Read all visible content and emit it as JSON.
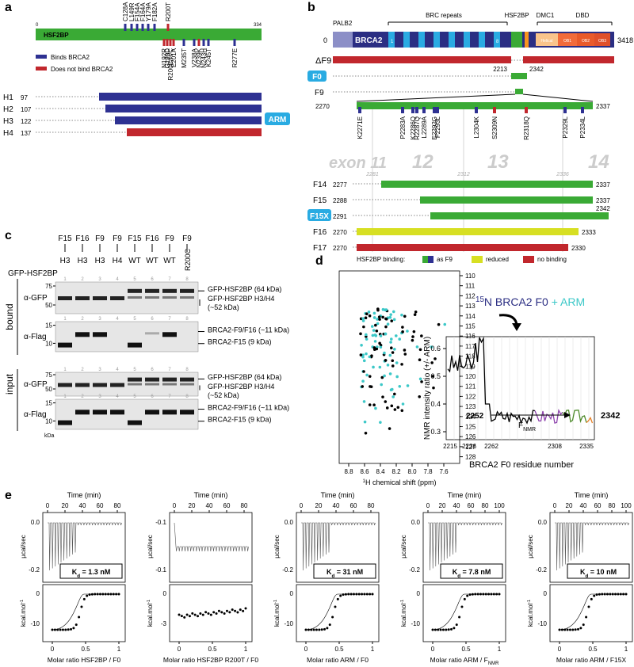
{
  "a": {
    "label": "a",
    "protein": "HSF2BP",
    "start": "0",
    "end": "334",
    "top_mutations": [
      "C128A",
      "L149R",
      "F154A",
      "F164A",
      "Y179A",
      "F182A",
      "R200T"
    ],
    "bottom_mutations": [
      "N192R",
      "G199D",
      "R200E/H/C",
      "E201A",
      "M235T",
      "V238A",
      "N239K",
      "N243H",
      "K245T",
      "R277E"
    ],
    "legend": [
      "Binds BRCA2",
      "Does not bind BRCA2"
    ],
    "constructs": [
      {
        "name": "H1",
        "start": "97"
      },
      {
        "name": "H2",
        "start": "107"
      },
      {
        "name": "H3",
        "start": "122"
      },
      {
        "name": "H4",
        "start": "137"
      }
    ],
    "arm": "ARM"
  },
  "b": {
    "label": "b",
    "domains": {
      "palb2": "PALB2",
      "brc": "BRC repeats",
      "hsf2bp": "HSF2BP",
      "dmc1": "DMC1",
      "dbd": "DBD"
    },
    "start": "0",
    "end": "3418",
    "protein": "BRCA2",
    "brc_first": "1",
    "brc_last": "8",
    "dbd_parts": [
      "Helical",
      "OB1",
      "OB2",
      "OB3"
    ],
    "delta_f9": "ΔF9",
    "f0": {
      "name": "F0",
      "start": "2213",
      "end": "2342"
    },
    "f9": {
      "name": "F9",
      "start": "2270",
      "end": "2337"
    },
    "mutations": [
      "K2271E",
      "P2283A",
      "K2286Q",
      "R2287Q",
      "L2289A",
      "E2292G",
      "F2293L",
      "L2304K",
      "S2309N",
      "R2318Q",
      "P2329L",
      "P2334L"
    ],
    "exons": [
      "exon 11",
      "12",
      "13",
      "14"
    ],
    "exon_bounds": [
      "2281",
      "2312",
      "2336"
    ],
    "constructs": [
      {
        "name": "F14",
        "start": "2277",
        "end": "2337"
      },
      {
        "name": "F15",
        "start": "2288",
        "end": "2337"
      },
      {
        "name": "F15X",
        "start": "2291",
        "end": "2342"
      },
      {
        "name": "F16",
        "start": "2270",
        "end": "2333"
      },
      {
        "name": "F17",
        "start": "2270",
        "end": "2330"
      }
    ],
    "binding_legend": {
      "title": "HSF2BP binding:",
      "items": [
        "as F9",
        "reduced",
        "no binding"
      ]
    }
  },
  "c": {
    "label": "c",
    "row_label": "GFP-HSF2BP",
    "brca2_lanes": [
      "F15",
      "F16",
      "F9",
      "F9",
      "F15",
      "F16",
      "F9",
      "F9"
    ],
    "hsf2bp_lanes": [
      "H3",
      "H3",
      "H3",
      "H4",
      "WT",
      "WT",
      "WT",
      "R200C"
    ],
    "lane_numbers": [
      "1",
      "2",
      "3",
      "4",
      "5",
      "6",
      "7",
      "8"
    ],
    "antibodies": [
      "α-GFP",
      "α-Flag"
    ],
    "sections": [
      "bound",
      "input"
    ],
    "gfp_ticks": [
      "75",
      "50"
    ],
    "flag_ticks": [
      "15",
      "10"
    ],
    "unit": "kDa",
    "band_labels": [
      "GFP-HSF2BP (64 kDa)",
      "GFP-HSF2BP H3/H4",
      "(~52 kDa)",
      "BRCA2-F9/F16 (~11 kDa)",
      "BRCA2-F15 (9 kDa)"
    ]
  },
  "d": {
    "label": "d",
    "nmr": {
      "yticks": [
        "110",
        "111",
        "112",
        "113",
        "114",
        "115",
        "116",
        "117",
        "118",
        "119",
        "120",
        "121",
        "122",
        "123",
        "124",
        "125",
        "126",
        "127",
        "128"
      ],
      "xticks": [
        "8.8",
        "8.6",
        "8.4",
        "8.2",
        "8.0",
        "7.8",
        "7.6"
      ],
      "xlabel": [
        "1",
        "H chemical shift (ppm)"
      ]
    },
    "ratio": {
      "title": [
        "15",
        "N BRCA2 F0",
        " + ARM"
      ],
      "ylabel": "NMR intensity ratio (+/- ARM)",
      "yticks": [
        "0.3",
        "0.4",
        "0.5",
        "0.6"
      ],
      "xticks": [
        "2215",
        "2236",
        "2262",
        "2308",
        "2335"
      ],
      "start": "2252",
      "region": [
        "F",
        "NMR"
      ],
      "end": "2342",
      "xlabel": "BRCA2 F0 residue number"
    }
  },
  "e": {
    "label": "e",
    "time_label": "Time (min)",
    "top_ylabel": "µcal/sec",
    "bottom_ylabel": [
      "kcal.mol",
      "-1"
    ],
    "kd_symbol": [
      "K",
      "d"
    ],
    "plots": [
      {
        "time_ticks": [
          "0",
          "20",
          "40",
          "60",
          "80"
        ],
        "top_yticks": [
          "0.0",
          "-0.2"
        ],
        "bottom_yticks": [
          "0",
          "-10"
        ],
        "x_ticks": [
          "0",
          "0.5",
          "1"
        ],
        "kd": " = 1.3 nM",
        "xlabel": [
          "Molar ratio HSF2BP / F0"
        ]
      },
      {
        "time_ticks": [
          "0",
          "20",
          "40",
          "60",
          "80"
        ],
        "top_yticks": [
          "-0.1",
          "-0.1"
        ],
        "bottom_yticks": [
          "0",
          "-3"
        ],
        "x_ticks": [
          "0",
          "0.5",
          "1"
        ],
        "xlabel": [
          "Molar ratio HSF2BP R200T / F0"
        ]
      },
      {
        "time_ticks": [
          "0",
          "20",
          "40",
          "60",
          "80"
        ],
        "top_yticks": [
          "0.0",
          "-0.2"
        ],
        "bottom_yticks": [
          "0",
          "-10"
        ],
        "x_ticks": [
          "0",
          "0.5",
          "1"
        ],
        "kd": " = 31 nM",
        "xlabel": [
          "Molar ratio ARM / F0"
        ]
      },
      {
        "time_ticks": [
          "0",
          "20",
          "40",
          "60",
          "80",
          "100"
        ],
        "top_yticks": [
          "0.0",
          "-0.2"
        ],
        "bottom_yticks": [
          "0",
          "-10"
        ],
        "x_ticks": [
          "0",
          "0.5",
          "1"
        ],
        "kd": " = 7.8 nM",
        "xlabel": [
          "Molar ratio ARM / F",
          "NMR"
        ]
      },
      {
        "time_ticks": [
          "0",
          "20",
          "40",
          "60",
          "80",
          "100"
        ],
        "top_yticks": [
          "0.0",
          "-0.2"
        ],
        "bottom_yticks": [
          "0",
          "-10"
        ],
        "x_ticks": [
          "0",
          "0.5",
          "1"
        ],
        "kd": " = 10 nM",
        "xlabel": [
          "Molar ratio ARM / F15X"
        ]
      }
    ]
  }
}
